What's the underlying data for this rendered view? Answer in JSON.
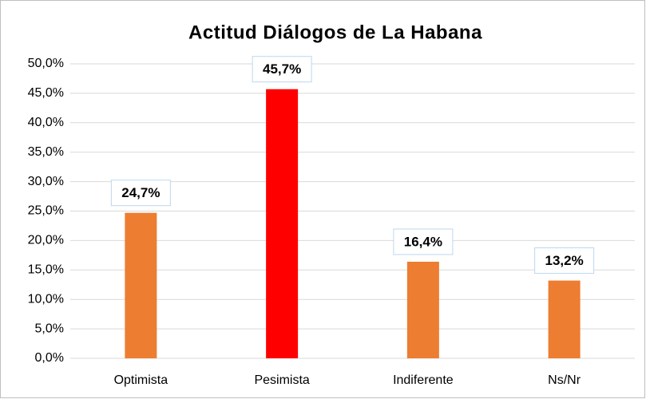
{
  "chart_data": {
    "type": "bar",
    "title": "Actitud Diálogos de La Habana",
    "categories": [
      "Optimista",
      "Pesimista",
      "Indiferente",
      "Ns/Nr"
    ],
    "values": [
      24.7,
      45.7,
      16.4,
      13.2
    ],
    "value_labels": [
      "24,7%",
      "45,7%",
      "16,4%",
      "13,2%"
    ],
    "colors": [
      "#ed7d31",
      "#ff0000",
      "#ed7d31",
      "#ed7d31"
    ],
    "ylim": [
      0,
      50
    ],
    "yticks": [
      {
        "value": 0,
        "label": "0,0%"
      },
      {
        "value": 5,
        "label": "5,0%"
      },
      {
        "value": 10,
        "label": "10,0%"
      },
      {
        "value": 15,
        "label": "15,0%"
      },
      {
        "value": 20,
        "label": "20,0%"
      },
      {
        "value": 25,
        "label": "25,0%"
      },
      {
        "value": 30,
        "label": "30,0%"
      },
      {
        "value": 35,
        "label": "35,0%"
      },
      {
        "value": 40,
        "label": "40,0%"
      },
      {
        "value": 45,
        "label": "45,0%"
      },
      {
        "value": 50,
        "label": "50,0%"
      }
    ],
    "grid": true
  }
}
